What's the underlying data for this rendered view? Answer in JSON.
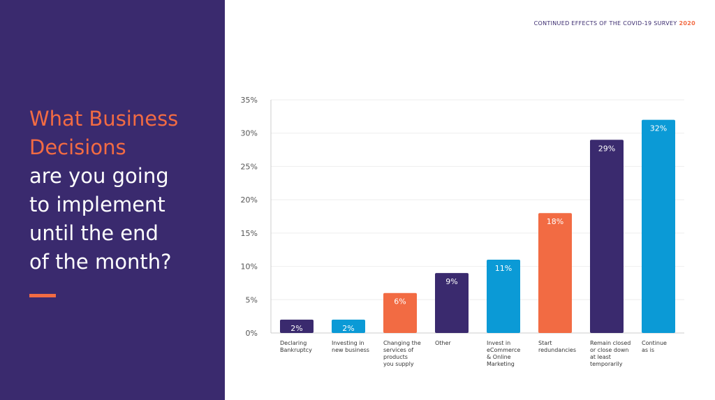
{
  "slide": {
    "header_text": "CONTINUED EFFECTS OF THE COVID-19 SURVEY",
    "header_year": "2020",
    "title_accent": "What Business\nDecisions",
    "title_rest": "are you going\nto implement\nuntil the end\nof the month?"
  },
  "colors": {
    "panel": "#3a2a6e",
    "accent": "#f26b43",
    "blue": "#0b9ad6",
    "purple": "#3a2a6e"
  },
  "chart_data": {
    "type": "bar",
    "title": "",
    "xlabel": "",
    "ylabel": "",
    "ylim": [
      0,
      35
    ],
    "yticks": [
      "0%",
      "5%",
      "10%",
      "15%",
      "20%",
      "25%",
      "30%",
      "35%"
    ],
    "grid": true,
    "categories": [
      "Declaring\nBankruptcy",
      "Investing in\nnew business",
      "Changing the\nservices of\nproducts\nyou supply",
      "Other",
      "Invest in\neCommerce\n& Online\nMarketing",
      "Start\nredundancies",
      "Remain closed\nor close down\nat least\ntemporarily",
      "Continue\nas is"
    ],
    "values": [
      2,
      2,
      6,
      9,
      11,
      18,
      29,
      32
    ],
    "data_labels": [
      "2%",
      "2%",
      "6%",
      "9%",
      "11%",
      "18%",
      "29%",
      "32%"
    ],
    "bar_colors": [
      "#3a2a6e",
      "#0b9ad6",
      "#f26b43",
      "#3a2a6e",
      "#0b9ad6",
      "#f26b43",
      "#3a2a6e",
      "#0b9ad6"
    ]
  }
}
